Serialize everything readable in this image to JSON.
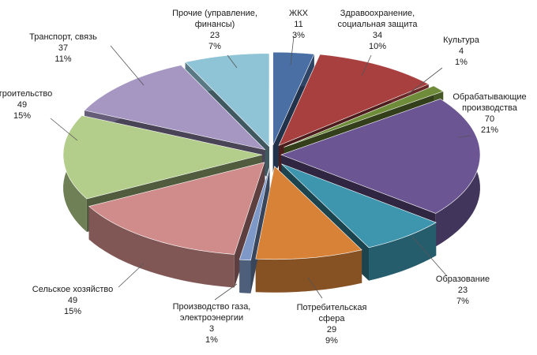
{
  "chart_data": {
    "type": "pie",
    "title": "",
    "series": [
      {
        "label": "ЖКХ",
        "label_lines": [
          "ЖКХ"
        ],
        "value": 11,
        "percent": "3%",
        "color": "#4a6fa5"
      },
      {
        "label": "Здравоохранение, социальная защита",
        "label_lines": [
          "Здравоохранение,",
          "социальная защита"
        ],
        "value": 34,
        "percent": "10%",
        "color": "#a8403f"
      },
      {
        "label": "Культура",
        "label_lines": [
          "Культура"
        ],
        "value": 4,
        "percent": "1%",
        "color": "#6f8c3a"
      },
      {
        "label": "Обрабатывающие производства",
        "label_lines": [
          "Обрабатывающие",
          "производства"
        ],
        "value": 70,
        "percent": "21%",
        "color": "#6b5593"
      },
      {
        "label": "Образование",
        "label_lines": [
          "Образование"
        ],
        "value": 23,
        "percent": "7%",
        "color": "#3d96ae"
      },
      {
        "label": "Потребительская сфера",
        "label_lines": [
          "Потребительская",
          "сфера"
        ],
        "value": 29,
        "percent": "9%",
        "color": "#d88238"
      },
      {
        "label": "Производство газа, электроэнергии",
        "label_lines": [
          "Производство газа,",
          "электроэнергии"
        ],
        "value": 3,
        "percent": "1%",
        "color": "#7e99c8"
      },
      {
        "label": "Сельское хозяйство",
        "label_lines": [
          "Сельское хозяйство"
        ],
        "value": 49,
        "percent": "15%",
        "color": "#d08c8b"
      },
      {
        "label": "Строительство",
        "label_lines": [
          "Строительство"
        ],
        "value": 49,
        "percent": "15%",
        "color": "#b3cd8a"
      },
      {
        "label": "Транспорт, связь",
        "label_lines": [
          "Транспорт, связь"
        ],
        "value": 37,
        "percent": "11%",
        "color": "#a597c2"
      },
      {
        "label": "Прочие (управление, финансы)",
        "label_lines": [
          "Прочие (управление,",
          "финансы)"
        ],
        "value": 23,
        "percent": "7%",
        "color": "#8fc3d6"
      }
    ],
    "exploded": true,
    "three_d": true,
    "legend": "none"
  }
}
